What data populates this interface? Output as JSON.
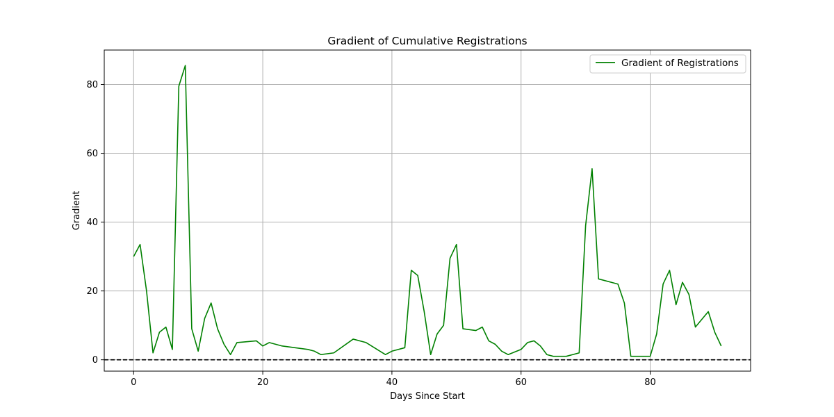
{
  "chart_data": {
    "type": "line",
    "title": "Gradient of Cumulative Registrations",
    "xlabel": "Days Since Start",
    "ylabel": "Gradient",
    "xlim": [
      -4.55,
      95.55
    ],
    "ylim": [
      -3.3,
      90.0
    ],
    "xticks": [
      0,
      20,
      40,
      60,
      80
    ],
    "yticks": [
      0,
      20,
      40,
      60,
      80
    ],
    "grid": true,
    "legend_position": "top-right",
    "reference_line": {
      "y": 0,
      "style": "dashed",
      "color": "#000000"
    },
    "series": [
      {
        "name": "Gradient of Registrations",
        "color": "#008000",
        "x": [
          0,
          1,
          2,
          3,
          4,
          5,
          6,
          7,
          8,
          9,
          10,
          11,
          12,
          13,
          14,
          15,
          16,
          19,
          20,
          21,
          23,
          27,
          28,
          29,
          31,
          34,
          36,
          39,
          40,
          42,
          43,
          44,
          45,
          46,
          47,
          48,
          49,
          50,
          51,
          53,
          54,
          55,
          56,
          57,
          58,
          60,
          61,
          62,
          63,
          64,
          65,
          67,
          69,
          70,
          71,
          72,
          75,
          76,
          77,
          80,
          81,
          82,
          83,
          84,
          85,
          86,
          87,
          89,
          90,
          91
        ],
        "y": [
          30,
          33.5,
          20,
          2,
          8,
          9.5,
          3,
          79.5,
          85.5,
          9,
          2.5,
          12,
          16.5,
          9,
          4.5,
          1.5,
          5,
          5.5,
          4,
          5,
          4,
          3,
          2.5,
          1.5,
          2,
          6,
          5,
          1.5,
          2.5,
          3.5,
          26,
          24.5,
          14,
          1.5,
          7.5,
          10,
          29.5,
          33.5,
          9,
          8.5,
          9.5,
          5.5,
          4.5,
          2.5,
          1.5,
          3,
          5,
          5.5,
          4,
          1.5,
          1,
          1,
          2,
          39,
          55.5,
          23.5,
          22,
          16.5,
          1,
          1,
          7.5,
          22,
          26,
          16,
          22.5,
          19,
          9.5,
          14,
          8,
          4
        ]
      }
    ]
  }
}
